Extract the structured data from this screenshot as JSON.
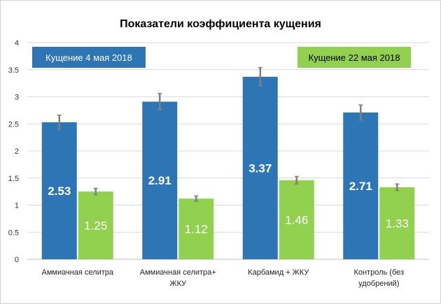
{
  "chart_data": {
    "type": "bar",
    "title": "Показатели коэффициента кущения",
    "xlabel": "",
    "ylabel": "",
    "ylim": [
      0,
      4
    ],
    "yticks": [
      "0",
      "0.5",
      "1",
      "1.5",
      "2",
      "2.5",
      "3",
      "3.5",
      "4"
    ],
    "grid": true,
    "legend_position": "top",
    "categories": [
      [
        "Аммиачная селитра"
      ],
      [
        "Аммиачная селитра+",
        "ЖКУ"
      ],
      [
        "Карбамид + ЖКУ"
      ],
      [
        "Контроль (без",
        "удобрений)"
      ]
    ],
    "series": [
      {
        "name": "Кущение 4 мая 2018",
        "color": "#2e75b6",
        "values": [
          2.53,
          2.91,
          3.37,
          2.71
        ],
        "labels": [
          "2.53",
          "2.91",
          "3.37",
          "2.71"
        ],
        "errors": [
          0.13,
          0.15,
          0.17,
          0.14
        ]
      },
      {
        "name": "Кущение 22 мая 2018",
        "color": "#92d050",
        "values": [
          1.25,
          1.12,
          1.46,
          1.33
        ],
        "labels": [
          "1.25",
          "1.12",
          "1.46",
          "1.33"
        ],
        "errors": [
          0.06,
          0.05,
          0.07,
          0.06
        ]
      }
    ]
  }
}
